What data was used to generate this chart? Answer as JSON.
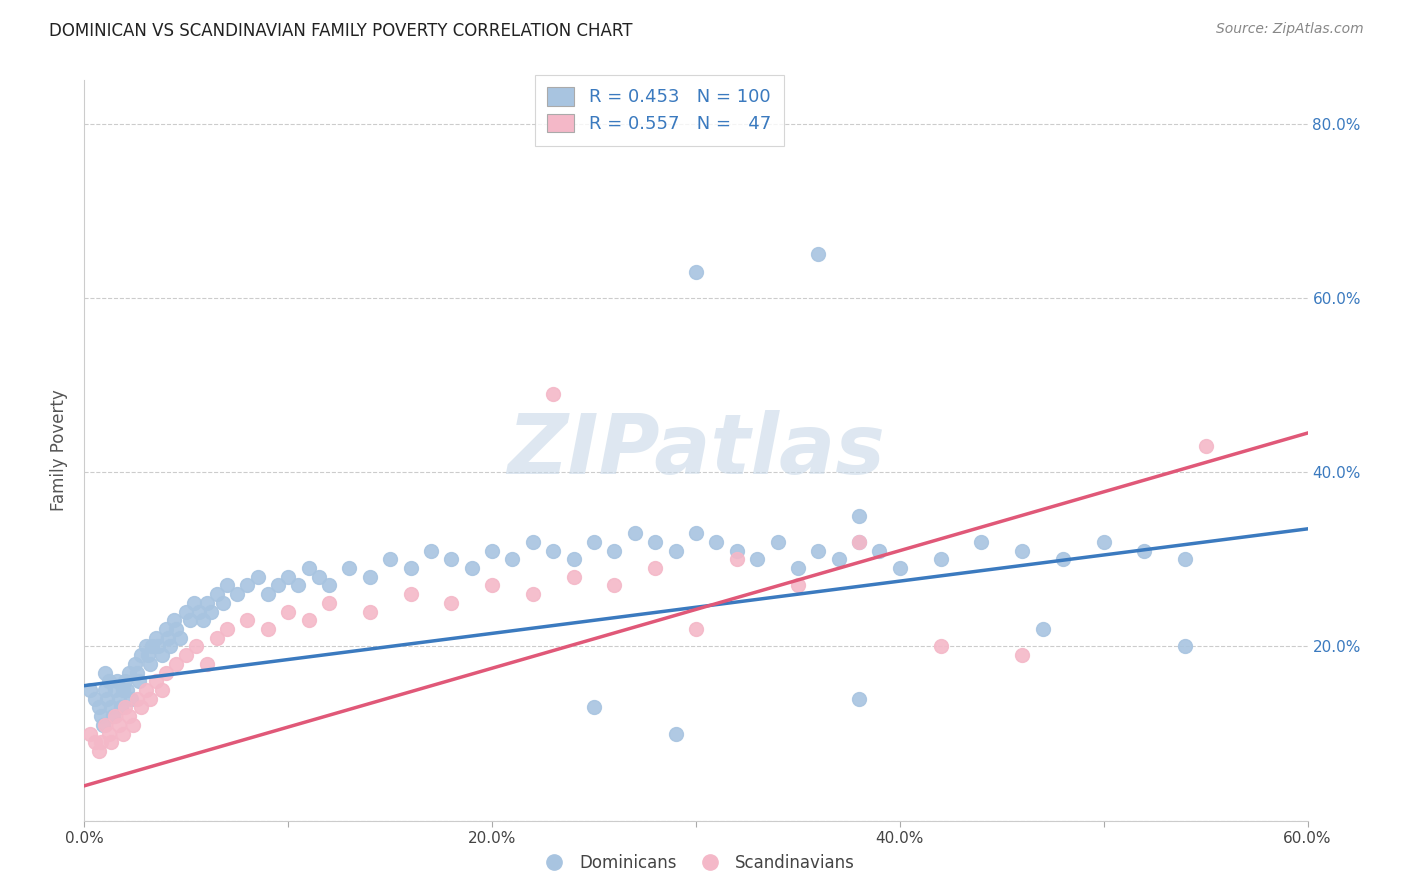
{
  "title": "DOMINICAN VS SCANDINAVIAN FAMILY POVERTY CORRELATION CHART",
  "source": "Source: ZipAtlas.com",
  "ylabel": "Family Poverty",
  "xlim": [
    0.0,
    0.6
  ],
  "ylim": [
    0.0,
    0.85
  ],
  "xtick_vals": [
    0.0,
    0.1,
    0.2,
    0.3,
    0.4,
    0.5,
    0.6
  ],
  "xticklabels": [
    "0.0%",
    "",
    "20.0%",
    "",
    "40.0%",
    "",
    "60.0%"
  ],
  "ytick_vals": [
    0.0,
    0.2,
    0.4,
    0.6,
    0.8
  ],
  "yticklabels_right": [
    "",
    "20.0%",
    "40.0%",
    "60.0%",
    "80.0%"
  ],
  "dom_color": "#a8c4e0",
  "scand_color": "#f4b8c8",
  "dom_line_color": "#3b7abf",
  "scand_line_color": "#e05878",
  "dom_line_x0": 0.0,
  "dom_line_y0": 0.155,
  "dom_line_x1": 0.6,
  "dom_line_y1": 0.335,
  "scand_line_x0": 0.0,
  "scand_line_y0": 0.04,
  "scand_line_x1": 0.6,
  "scand_line_y1": 0.445,
  "watermark_text": "ZIPatlas",
  "watermark_color": "#c8d8e8",
  "background_color": "#ffffff",
  "dom_x": [
    0.003,
    0.005,
    0.007,
    0.008,
    0.009,
    0.01,
    0.01,
    0.011,
    0.012,
    0.013,
    0.014,
    0.015,
    0.016,
    0.017,
    0.018,
    0.019,
    0.02,
    0.021,
    0.022,
    0.023,
    0.025,
    0.026,
    0.027,
    0.028,
    0.03,
    0.031,
    0.032,
    0.033,
    0.035,
    0.036,
    0.038,
    0.04,
    0.041,
    0.042,
    0.044,
    0.045,
    0.047,
    0.05,
    0.052,
    0.054,
    0.056,
    0.058,
    0.06,
    0.062,
    0.065,
    0.068,
    0.07,
    0.075,
    0.08,
    0.085,
    0.09,
    0.095,
    0.1,
    0.105,
    0.11,
    0.115,
    0.12,
    0.13,
    0.14,
    0.15,
    0.16,
    0.17,
    0.18,
    0.19,
    0.2,
    0.21,
    0.22,
    0.23,
    0.24,
    0.25,
    0.26,
    0.27,
    0.28,
    0.29,
    0.3,
    0.31,
    0.32,
    0.33,
    0.34,
    0.35,
    0.36,
    0.37,
    0.38,
    0.39,
    0.4,
    0.42,
    0.44,
    0.46,
    0.48,
    0.5,
    0.52,
    0.54,
    0.3,
    0.36,
    0.29,
    0.25,
    0.38,
    0.47,
    0.38,
    0.54
  ],
  "dom_y": [
    0.15,
    0.14,
    0.13,
    0.12,
    0.11,
    0.15,
    0.17,
    0.14,
    0.16,
    0.13,
    0.12,
    0.15,
    0.16,
    0.14,
    0.13,
    0.15,
    0.16,
    0.15,
    0.17,
    0.14,
    0.18,
    0.17,
    0.16,
    0.19,
    0.2,
    0.19,
    0.18,
    0.2,
    0.21,
    0.2,
    0.19,
    0.22,
    0.21,
    0.2,
    0.23,
    0.22,
    0.21,
    0.24,
    0.23,
    0.25,
    0.24,
    0.23,
    0.25,
    0.24,
    0.26,
    0.25,
    0.27,
    0.26,
    0.27,
    0.28,
    0.26,
    0.27,
    0.28,
    0.27,
    0.29,
    0.28,
    0.27,
    0.29,
    0.28,
    0.3,
    0.29,
    0.31,
    0.3,
    0.29,
    0.31,
    0.3,
    0.32,
    0.31,
    0.3,
    0.32,
    0.31,
    0.33,
    0.32,
    0.31,
    0.33,
    0.32,
    0.31,
    0.3,
    0.32,
    0.29,
    0.31,
    0.3,
    0.32,
    0.31,
    0.29,
    0.3,
    0.32,
    0.31,
    0.3,
    0.32,
    0.31,
    0.3,
    0.63,
    0.65,
    0.1,
    0.13,
    0.35,
    0.22,
    0.14,
    0.2
  ],
  "scand_x": [
    0.003,
    0.005,
    0.007,
    0.008,
    0.01,
    0.012,
    0.013,
    0.015,
    0.017,
    0.019,
    0.02,
    0.022,
    0.024,
    0.026,
    0.028,
    0.03,
    0.032,
    0.035,
    0.038,
    0.04,
    0.045,
    0.05,
    0.055,
    0.06,
    0.065,
    0.07,
    0.08,
    0.09,
    0.1,
    0.11,
    0.12,
    0.14,
    0.16,
    0.18,
    0.2,
    0.22,
    0.24,
    0.26,
    0.28,
    0.3,
    0.32,
    0.35,
    0.38,
    0.42,
    0.46,
    0.55,
    0.23
  ],
  "scand_y": [
    0.1,
    0.09,
    0.08,
    0.09,
    0.11,
    0.1,
    0.09,
    0.12,
    0.11,
    0.1,
    0.13,
    0.12,
    0.11,
    0.14,
    0.13,
    0.15,
    0.14,
    0.16,
    0.15,
    0.17,
    0.18,
    0.19,
    0.2,
    0.18,
    0.21,
    0.22,
    0.23,
    0.22,
    0.24,
    0.23,
    0.25,
    0.24,
    0.26,
    0.25,
    0.27,
    0.26,
    0.28,
    0.27,
    0.29,
    0.22,
    0.3,
    0.27,
    0.32,
    0.2,
    0.19,
    0.43,
    0.49
  ]
}
